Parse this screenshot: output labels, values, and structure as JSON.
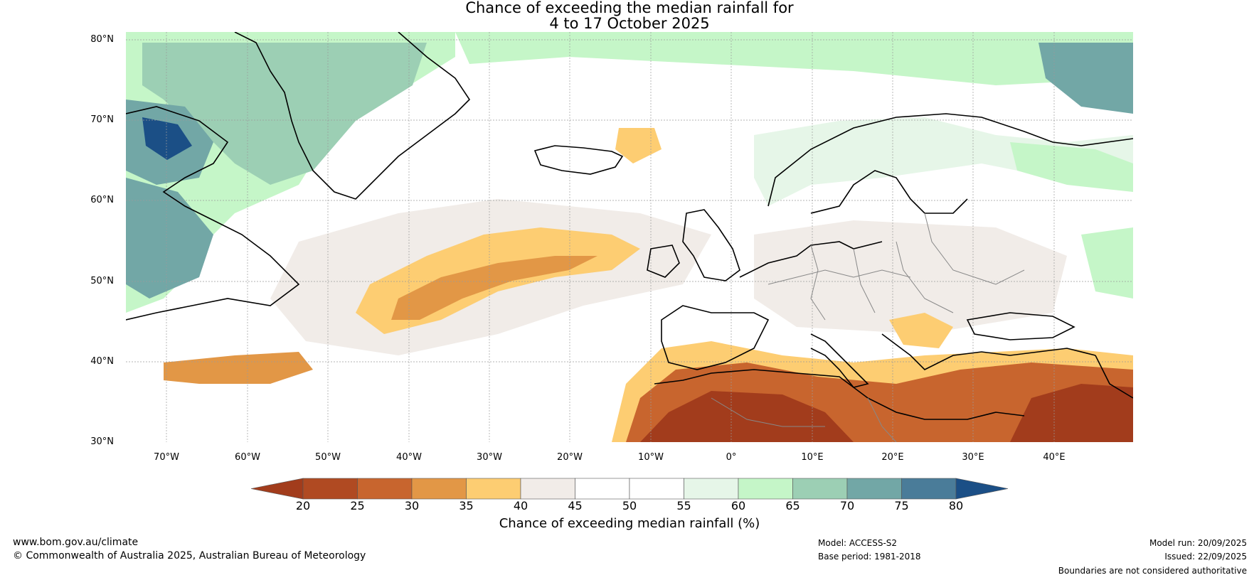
{
  "title_line1": "Chance of exceeding the median rainfall for",
  "title_line2": "4 to 17 October 2025",
  "lat_labels": [
    "80°N",
    "70°N",
    "60°N",
    "50°N",
    "40°N",
    "30°N"
  ],
  "lon_labels": [
    "70°W",
    "60°W",
    "50°W",
    "40°W",
    "30°W",
    "20°W",
    "10°W",
    "0°",
    "10°E",
    "20°E",
    "30°E",
    "40°E"
  ],
  "colorbar": {
    "ticks": [
      "20",
      "25",
      "30",
      "35",
      "40",
      "45",
      "50",
      "55",
      "60",
      "65",
      "70",
      "75",
      "80"
    ],
    "colors": [
      "#a23c1c",
      "#b04a22",
      "#c8652e",
      "#e29746",
      "#fdcd72",
      "#f1ece8",
      "#ffffff",
      "#ffffff",
      "#e6f6e8",
      "#c5f6c8",
      "#9ccfb4",
      "#72a7a6",
      "#4a7c99",
      "#1b4f86"
    ],
    "label": "Chance of exceeding median rainfall (%)"
  },
  "footer": {
    "website": "www.bom.gov.au/climate",
    "copyright": "© Commonwealth of Australia 2025, Australian Bureau of Meteorology",
    "model": "Model: ACCESS-S2",
    "base_period": "Base period: 1981-2018",
    "model_run": "Model run: 20/09/2025",
    "issued": "Issued: 22/09/2025",
    "disclaimer": "Boundaries are not considered authoritative"
  }
}
